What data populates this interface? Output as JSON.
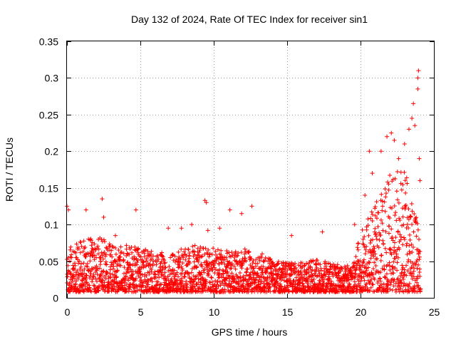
{
  "chart_data": {
    "type": "scatter",
    "title": "Day 132 of 2024, Rate Of TEC Index for receiver sin1",
    "xlabel": "GPS time / hours",
    "ylabel": "ROTI / TECUs",
    "xlim": [
      0,
      25
    ],
    "ylim": [
      0,
      0.35
    ],
    "grid": true,
    "marker": "plus",
    "color": "#ff0000",
    "xticks": [
      0,
      5,
      10,
      15,
      20,
      25
    ],
    "xtick_labels": [
      "0",
      "5",
      "10",
      "15",
      "20",
      "25"
    ],
    "yticks": [
      0,
      0.05,
      0.1,
      0.15,
      0.2,
      0.25,
      0.3,
      0.35
    ],
    "ytick_labels": [
      "0",
      "0.05",
      "0.1",
      "0.15",
      "0.2",
      "0.25",
      "0.3",
      "0.35"
    ],
    "series": [
      {
        "name": "ROTI",
        "baseline_profile": {
          "hours": [
            0,
            1,
            2,
            3,
            4,
            5,
            6,
            7,
            8,
            9,
            10,
            11,
            12,
            13,
            14,
            15,
            16,
            17,
            18,
            19,
            19.5,
            20,
            21,
            22,
            23,
            24.1
          ],
          "typical_upper": [
            0.06,
            0.07,
            0.075,
            0.07,
            0.065,
            0.06,
            0.055,
            0.055,
            0.06,
            0.065,
            0.06,
            0.06,
            0.06,
            0.05,
            0.045,
            0.04,
            0.04,
            0.045,
            0.04,
            0.035,
            0.04,
            0.08,
            0.12,
            0.16,
            0.17,
            0.08
          ]
        },
        "notable_points": [
          {
            "x": 0.0,
            "y": 0.125
          },
          {
            "x": 0.1,
            "y": 0.12
          },
          {
            "x": 1.3,
            "y": 0.12
          },
          {
            "x": 2.4,
            "y": 0.135
          },
          {
            "x": 2.5,
            "y": 0.11
          },
          {
            "x": 3.3,
            "y": 0.085
          },
          {
            "x": 4.7,
            "y": 0.12
          },
          {
            "x": 6.9,
            "y": 0.095
          },
          {
            "x": 7.8,
            "y": 0.095
          },
          {
            "x": 8.5,
            "y": 0.1
          },
          {
            "x": 9.4,
            "y": 0.133
          },
          {
            "x": 9.5,
            "y": 0.13
          },
          {
            "x": 9.6,
            "y": 0.092
          },
          {
            "x": 10.4,
            "y": 0.095
          },
          {
            "x": 11.1,
            "y": 0.12
          },
          {
            "x": 11.9,
            "y": 0.115
          },
          {
            "x": 12.6,
            "y": 0.125
          },
          {
            "x": 13.3,
            "y": 0.06
          },
          {
            "x": 15.3,
            "y": 0.085
          },
          {
            "x": 17.4,
            "y": 0.09
          },
          {
            "x": 19.6,
            "y": 0.1
          },
          {
            "x": 20.3,
            "y": 0.14
          },
          {
            "x": 20.6,
            "y": 0.2
          },
          {
            "x": 20.8,
            "y": 0.17
          },
          {
            "x": 21.4,
            "y": 0.2
          },
          {
            "x": 21.8,
            "y": 0.22
          },
          {
            "x": 22.1,
            "y": 0.225
          },
          {
            "x": 22.3,
            "y": 0.215
          },
          {
            "x": 22.6,
            "y": 0.19
          },
          {
            "x": 23.0,
            "y": 0.21
          },
          {
            "x": 23.3,
            "y": 0.23
          },
          {
            "x": 23.5,
            "y": 0.245
          },
          {
            "x": 23.6,
            "y": 0.265
          },
          {
            "x": 23.7,
            "y": 0.235
          },
          {
            "x": 23.9,
            "y": 0.3
          },
          {
            "x": 23.95,
            "y": 0.31
          },
          {
            "x": 23.9,
            "y": 0.285
          },
          {
            "x": 24.0,
            "y": 0.19
          },
          {
            "x": 24.05,
            "y": 0.16
          }
        ]
      }
    ]
  }
}
